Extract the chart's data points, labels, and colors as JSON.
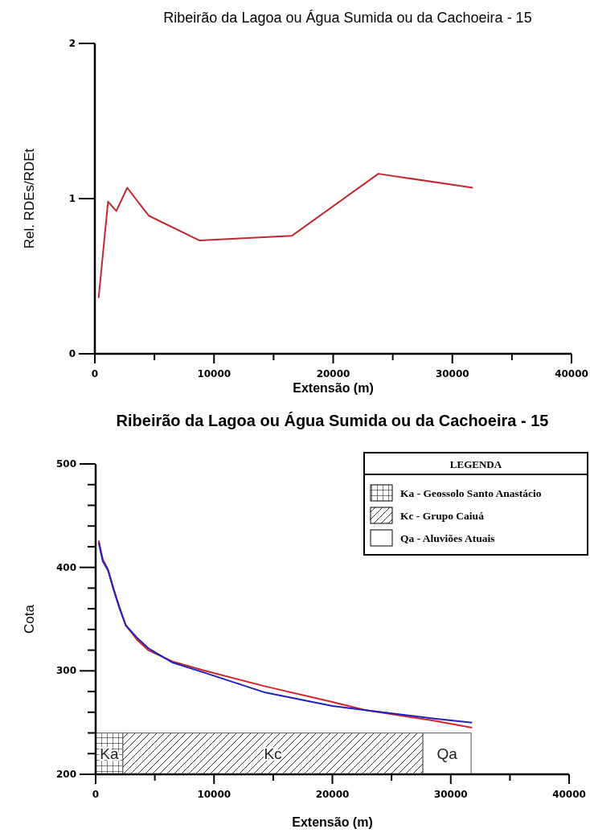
{
  "chart_data": [
    {
      "type": "line",
      "title": "Ribeirão da Lagoa ou Água Sumida ou da Cachoeira - 15",
      "xlabel": "Extensão (m)",
      "ylabel": "Rel. RDEs/RDEt",
      "x": [
        316,
        1106,
        1801,
        2717,
        4518,
        8784,
        16524,
        23791,
        31722
      ],
      "series": [
        {
          "color": "#c0282d",
          "values": [
            0.36,
            0.98,
            0.92,
            1.07,
            0.89,
            0.73,
            0.76,
            1.16,
            1.07
          ]
        }
      ],
      "xlim": [
        0,
        40000
      ],
      "ylim": [
        0,
        2
      ],
      "xticks": [
        0,
        {
          "value": 5000,
          "label": null
        },
        10000,
        {
          "value": 15000,
          "label": null
        },
        20000,
        {
          "value": 25000,
          "label": null
        },
        30000,
        {
          "value": 35000,
          "label": null
        },
        40000
      ],
      "yticks": [
        0,
        1,
        2
      ],
      "grid": false,
      "line_style": "solid",
      "marker": "none"
    },
    {
      "type": "line",
      "title": "Ribeirão da Lagoa ou Água Sumida ou da Cachoeira - 15",
      "xlabel": "Extensão (m)",
      "ylabel": "Cota",
      "legend_title": "LEGENDA",
      "series": [
        {
          "color": "#d0262a",
          "x": [
            254,
            600,
            1048,
            1500,
            2000,
            2544,
            3500,
            4438,
            6500,
            9244,
            14332,
            19993,
            22812,
            28470,
            31802
          ],
          "values": [
            426,
            408,
            398,
            380,
            362,
            344,
            330,
            320,
            309,
            300,
            285,
            270,
            262,
            252,
            245
          ]
        },
        {
          "color": "#2020c0",
          "x": [
            254,
            600,
            1048,
            1500,
            2000,
            2544,
            3500,
            4438,
            6500,
            9244,
            14332,
            19993,
            22812,
            28470,
            31802
          ],
          "values": [
            424,
            406,
            397,
            379,
            361,
            344,
            332,
            322,
            308,
            298,
            279,
            266,
            262,
            254,
            250
          ]
        }
      ],
      "bands": [
        {
          "axis": "x",
          "from": 0,
          "to": 2300,
          "label": "Ka"
        },
        {
          "axis": "x",
          "from": 2300,
          "to": 27650,
          "label": "Kc"
        },
        {
          "axis": "x",
          "from": 27650,
          "to": 31720,
          "label": "Qa"
        }
      ],
      "annotations": [
        "Ka - Geossolo Santo Anastácio",
        "Kc - Grupo Caiuá",
        "Qa - Aluviões Atuais"
      ],
      "xlim": [
        0,
        40000
      ],
      "ylim": [
        200,
        500
      ],
      "xticks": [
        0,
        {
          "value": 5000,
          "label": null
        },
        10000,
        {
          "value": 15000,
          "label": null
        },
        20000,
        {
          "value": 25000,
          "label": null
        },
        30000,
        {
          "value": 35000,
          "label": null
        },
        40000
      ],
      "yticks": [
        200,
        {
          "value": 220,
          "label": null
        },
        {
          "value": 240,
          "label": null
        },
        {
          "value": 260,
          "label": null
        },
        {
          "value": 280,
          "label": null
        },
        300,
        {
          "value": 320,
          "label": null
        },
        {
          "value": 340,
          "label": null
        },
        {
          "value": 360,
          "label": null
        },
        {
          "value": 380,
          "label": null
        },
        400,
        {
          "value": 420,
          "label": null
        },
        {
          "value": 440,
          "label": null
        },
        {
          "value": 460,
          "label": null
        },
        {
          "value": 480,
          "label": null
        },
        500
      ],
      "grid": false,
      "line_style": "solid",
      "marker": "none"
    }
  ]
}
